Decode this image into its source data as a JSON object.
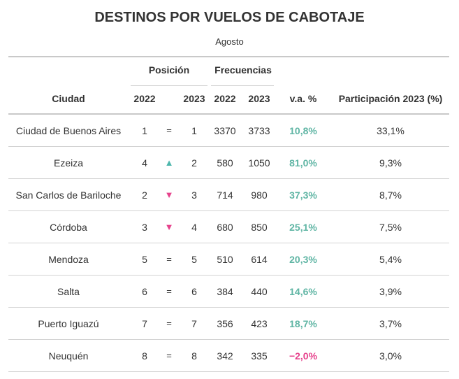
{
  "title": "DESTINOS POR VUELOS DE CABOTAJE",
  "subtitle": "Agosto",
  "group_headers": {
    "posicion": "Posición",
    "frecuencias": "Frecuencias"
  },
  "columns": {
    "ciudad": "Ciudad",
    "pos_2022": "2022",
    "pos_2023": "2023",
    "frec_2022": "2022",
    "frec_2023": "2023",
    "va": "v.a. %",
    "participacion": "Participación 2023 (%)"
  },
  "colors": {
    "up": "#4db6ac",
    "down": "#e6428c",
    "positive_va": "#5fb5a4",
    "negative_va": "#e6428c"
  },
  "rows": [
    {
      "ciudad": "Ciudad de Buenos Aires",
      "pos_2022": "1",
      "change": "=",
      "change_type": "equal",
      "pos_2023": "1",
      "frec_2022": "3370",
      "frec_2023": "3733",
      "va": "10,8%",
      "va_sign": "positive",
      "participacion": "33,1%"
    },
    {
      "ciudad": "Ezeiza",
      "pos_2022": "4",
      "change": "▲",
      "change_type": "up",
      "pos_2023": "2",
      "frec_2022": "580",
      "frec_2023": "1050",
      "va": "81,0%",
      "va_sign": "positive",
      "participacion": "9,3%"
    },
    {
      "ciudad": "San Carlos de Bariloche",
      "pos_2022": "2",
      "change": "▼",
      "change_type": "down",
      "pos_2023": "3",
      "frec_2022": "714",
      "frec_2023": "980",
      "va": "37,3%",
      "va_sign": "positive",
      "participacion": "8,7%"
    },
    {
      "ciudad": "Córdoba",
      "pos_2022": "3",
      "change": "▼",
      "change_type": "down",
      "pos_2023": "4",
      "frec_2022": "680",
      "frec_2023": "850",
      "va": "25,1%",
      "va_sign": "positive",
      "participacion": "7,5%"
    },
    {
      "ciudad": "Mendoza",
      "pos_2022": "5",
      "change": "=",
      "change_type": "equal",
      "pos_2023": "5",
      "frec_2022": "510",
      "frec_2023": "614",
      "va": "20,3%",
      "va_sign": "positive",
      "participacion": "5,4%"
    },
    {
      "ciudad": "Salta",
      "pos_2022": "6",
      "change": "=",
      "change_type": "equal",
      "pos_2023": "6",
      "frec_2022": "384",
      "frec_2023": "440",
      "va": "14,6%",
      "va_sign": "positive",
      "participacion": "3,9%"
    },
    {
      "ciudad": "Puerto Iguazú",
      "pos_2022": "7",
      "change": "=",
      "change_type": "equal",
      "pos_2023": "7",
      "frec_2022": "356",
      "frec_2023": "423",
      "va": "18,7%",
      "va_sign": "positive",
      "participacion": "3,7%"
    },
    {
      "ciudad": "Neuquén",
      "pos_2022": "8",
      "change": "=",
      "change_type": "equal",
      "pos_2023": "8",
      "frec_2022": "342",
      "frec_2023": "335",
      "va": "−2,0%",
      "va_sign": "negative",
      "participacion": "3,0%"
    }
  ]
}
